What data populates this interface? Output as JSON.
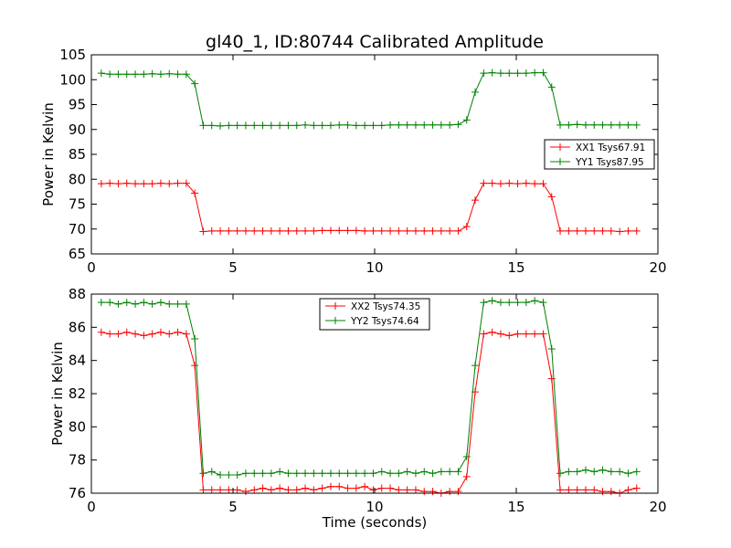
{
  "title": "gl40_1, ID:80744 Calibrated Amplitude",
  "chart_data": [
    {
      "type": "line",
      "title": "gl40_1, ID:80744 Calibrated Amplitude",
      "xlabel": "",
      "ylabel": "Power in Kelvin",
      "xlim": [
        0,
        20
      ],
      "ylim": [
        65,
        105
      ],
      "xticks": [
        0,
        5,
        10,
        15,
        20
      ],
      "yticks": [
        65,
        70,
        75,
        80,
        85,
        90,
        95,
        100,
        105
      ],
      "grid": false,
      "legend_position": "right",
      "x": [
        0.35,
        0.65,
        0.95,
        1.25,
        1.55,
        1.85,
        2.15,
        2.45,
        2.75,
        3.05,
        3.35,
        3.65,
        3.95,
        4.25,
        4.55,
        4.85,
        5.15,
        5.45,
        5.75,
        6.05,
        6.35,
        6.65,
        6.95,
        7.25,
        7.55,
        7.85,
        8.15,
        8.45,
        8.75,
        9.05,
        9.35,
        9.65,
        9.95,
        10.25,
        10.55,
        10.85,
        11.15,
        11.45,
        11.75,
        12.05,
        12.35,
        12.65,
        12.95,
        13.25,
        13.55,
        13.85,
        14.15,
        14.45,
        14.75,
        15.05,
        15.35,
        15.65,
        15.95,
        16.25,
        16.55,
        16.85,
        17.15,
        17.45,
        17.75,
        18.05,
        18.35,
        18.65,
        18.95,
        19.25
      ],
      "series": [
        {
          "name": "XX1 Tsys67.91",
          "color": "#ff0000",
          "values": [
            79.1,
            79.2,
            79.1,
            79.2,
            79.1,
            79.1,
            79.1,
            79.2,
            79.1,
            79.2,
            79.2,
            77.2,
            69.5,
            69.6,
            69.6,
            69.6,
            69.6,
            69.6,
            69.6,
            69.6,
            69.6,
            69.6,
            69.6,
            69.6,
            69.6,
            69.6,
            69.7,
            69.7,
            69.7,
            69.7,
            69.7,
            69.6,
            69.6,
            69.6,
            69.6,
            69.6,
            69.6,
            69.6,
            69.6,
            69.6,
            69.6,
            69.6,
            69.6,
            70.5,
            75.8,
            79.2,
            79.2,
            79.1,
            79.2,
            79.1,
            79.2,
            79.1,
            79.1,
            76.5,
            69.6,
            69.6,
            69.6,
            69.6,
            69.6,
            69.6,
            69.6,
            69.5,
            69.6,
            69.6
          ]
        },
        {
          "name": "YY1 Tsys87.95",
          "color": "#008000",
          "values": [
            101.3,
            101.1,
            101.1,
            101.1,
            101.1,
            101.1,
            101.2,
            101.1,
            101.2,
            101.1,
            101.1,
            99.2,
            90.8,
            90.8,
            90.7,
            90.8,
            90.8,
            90.8,
            90.8,
            90.8,
            90.8,
            90.8,
            90.8,
            90.8,
            90.9,
            90.8,
            90.8,
            90.8,
            90.9,
            90.9,
            90.8,
            90.8,
            90.8,
            90.8,
            90.9,
            90.9,
            90.9,
            90.9,
            90.9,
            90.9,
            90.9,
            90.9,
            91.0,
            91.9,
            97.5,
            101.3,
            101.4,
            101.3,
            101.3,
            101.3,
            101.3,
            101.4,
            101.4,
            98.5,
            90.9,
            90.9,
            91.0,
            90.9,
            90.9,
            90.9,
            90.9,
            90.9,
            90.9,
            90.9
          ]
        }
      ]
    },
    {
      "type": "line",
      "title": "",
      "xlabel": "Time (seconds)",
      "ylabel": "Power in Kelvin",
      "xlim": [
        0,
        20
      ],
      "ylim": [
        76,
        88
      ],
      "xticks": [
        0,
        5,
        10,
        15,
        20
      ],
      "yticks": [
        76,
        78,
        80,
        82,
        84,
        86,
        88
      ],
      "grid": false,
      "legend_position": "top-center",
      "x": [
        0.35,
        0.65,
        0.95,
        1.25,
        1.55,
        1.85,
        2.15,
        2.45,
        2.75,
        3.05,
        3.35,
        3.65,
        3.95,
        4.25,
        4.55,
        4.85,
        5.15,
        5.45,
        5.75,
        6.05,
        6.35,
        6.65,
        6.95,
        7.25,
        7.55,
        7.85,
        8.15,
        8.45,
        8.75,
        9.05,
        9.35,
        9.65,
        9.95,
        10.25,
        10.55,
        10.85,
        11.15,
        11.45,
        11.75,
        12.05,
        12.35,
        12.65,
        12.95,
        13.25,
        13.55,
        13.85,
        14.15,
        14.45,
        14.75,
        15.05,
        15.35,
        15.65,
        15.95,
        16.25,
        16.55,
        16.85,
        17.15,
        17.45,
        17.75,
        18.05,
        18.35,
        18.65,
        18.95,
        19.25
      ],
      "series": [
        {
          "name": "XX2 Tsys74.35",
          "color": "#ff0000",
          "values": [
            85.7,
            85.6,
            85.6,
            85.7,
            85.6,
            85.5,
            85.6,
            85.7,
            85.6,
            85.7,
            85.6,
            83.7,
            76.2,
            76.2,
            76.2,
            76.2,
            76.2,
            76.1,
            76.2,
            76.3,
            76.2,
            76.3,
            76.2,
            76.2,
            76.3,
            76.2,
            76.3,
            76.4,
            76.4,
            76.3,
            76.3,
            76.4,
            76.2,
            76.3,
            76.3,
            76.2,
            76.2,
            76.2,
            76.1,
            76.1,
            76.0,
            76.1,
            76.1,
            77.0,
            82.1,
            85.6,
            85.7,
            85.6,
            85.5,
            85.6,
            85.6,
            85.6,
            85.6,
            82.9,
            76.2,
            76.2,
            76.2,
            76.2,
            76.2,
            76.1,
            76.1,
            76.0,
            76.2,
            76.3
          ]
        },
        {
          "name": "YY2 Tsys74.64",
          "color": "#008000",
          "values": [
            87.5,
            87.5,
            87.4,
            87.5,
            87.4,
            87.5,
            87.4,
            87.5,
            87.4,
            87.4,
            87.4,
            85.3,
            77.2,
            77.3,
            77.1,
            77.1,
            77.1,
            77.2,
            77.2,
            77.2,
            77.2,
            77.3,
            77.2,
            77.2,
            77.2,
            77.2,
            77.2,
            77.2,
            77.2,
            77.2,
            77.2,
            77.2,
            77.2,
            77.3,
            77.2,
            77.2,
            77.3,
            77.2,
            77.3,
            77.2,
            77.3,
            77.3,
            77.3,
            78.2,
            83.7,
            87.5,
            87.6,
            87.5,
            87.5,
            87.5,
            87.5,
            87.6,
            87.5,
            84.7,
            77.2,
            77.3,
            77.3,
            77.4,
            77.3,
            77.4,
            77.3,
            77.3,
            77.2,
            77.3
          ]
        }
      ]
    }
  ]
}
